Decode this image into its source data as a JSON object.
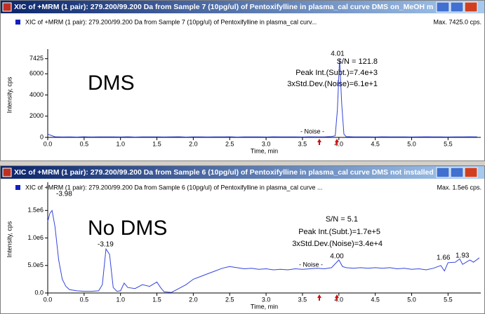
{
  "chart_data": [
    {
      "type": "line",
      "window_title": "XIC of +MRM (1 pair): 279.200/99.200 Da  from Sample 7 (10pg/ul) of Pentoxifylline in plasma_cal curve DMS on_MeOH m...",
      "title": "XIC of +MRM (1 pair): 279.200/99.200 Da  from Sample 7 (10pg/ul) of Pentoxifylline in plasma_cal curv...",
      "max_label": "Max. 7425.0 cps.",
      "xlabel": "Time, min",
      "ylabel": "Intensity, cps",
      "color": "#3344dd",
      "xlim": [
        0,
        5.95
      ],
      "ylim": [
        0,
        8000
      ],
      "xticks": [
        {
          "value": 0,
          "label": "0.0"
        },
        0.5,
        {
          "value": 1,
          "label": "1.0"
        },
        1.5,
        {
          "value": 2,
          "label": "2.0"
        },
        2.5,
        {
          "value": 3,
          "label": "3.0"
        },
        3.5,
        {
          "value": 4,
          "label": "4.0"
        },
        4.5,
        {
          "value": 5,
          "label": "5.0"
        },
        5.5
      ],
      "yticks": [
        0,
        2000,
        4000,
        6000,
        7425
      ],
      "annotations": [
        "DMS",
        "S/N = 121.8",
        "Peak Int.(Subt.)=7.4e+3",
        "3xStd.Dev.(Noise)=6.1e+1",
        "- Noise -",
        "4.01"
      ],
      "x": [
        0,
        0.1,
        0.2,
        0.3,
        0.4,
        0.5,
        0.6,
        0.7,
        0.8,
        0.9,
        1,
        1.1,
        1.2,
        1.3,
        1.4,
        1.5,
        1.6,
        1.7,
        1.8,
        1.9,
        2,
        2.1,
        2.2,
        2.3,
        2.4,
        2.5,
        2.6,
        2.7,
        2.8,
        2.9,
        3,
        3.1,
        3.2,
        3.3,
        3.4,
        3.5,
        3.6,
        3.7,
        3.8,
        3.9,
        3.95,
        3.98,
        4.01,
        4.04,
        4.07,
        4.1,
        4.2,
        4.3,
        4.4,
        4.5,
        4.6,
        4.7,
        4.8,
        4.9,
        5,
        5.1,
        5.2,
        5.3,
        5.4,
        5.5,
        5.6,
        5.7,
        5.8,
        5.9
      ],
      "values": [
        300,
        60,
        40,
        50,
        30,
        60,
        40,
        50,
        45,
        55,
        40,
        60,
        35,
        50,
        45,
        55,
        40,
        50,
        60,
        35,
        45,
        55,
        40,
        50,
        45,
        60,
        35,
        50,
        45,
        55,
        40,
        60,
        50,
        45,
        55,
        40,
        60,
        50,
        45,
        80,
        150,
        2600,
        7425,
        3100,
        300,
        70,
        50,
        45,
        55,
        40,
        60,
        50,
        45,
        55,
        40,
        50,
        60,
        45,
        55,
        40,
        50,
        45,
        60,
        50
      ]
    },
    {
      "type": "line",
      "window_title": "XIC of +MRM (1 pair): 279.200/99.200 Da  from Sample 6 (10pg/ul) of Pentoxifylline in plasma_cal curve DMS not installed...",
      "title": "XIC of +MRM (1 pair): 279.200/99.200 Da  from Sample 6 (10pg/ul) of Pentoxifylline in plasma_cal curve ...",
      "max_label": "Max. 1.5e6 cps.",
      "xlabel": "Time, min",
      "ylabel": "Intensity, cps",
      "color": "#3344dd",
      "xlim": [
        0,
        5.95
      ],
      "ylim": [
        0,
        1950000
      ],
      "xticks": [
        {
          "value": 0,
          "label": "0.0"
        },
        0.5,
        {
          "value": 1,
          "label": "1.0"
        },
        1.5,
        {
          "value": 2,
          "label": "2.0"
        },
        2.5,
        {
          "value": 3,
          "label": "3.0"
        },
        3.5,
        {
          "value": 4,
          "label": "4.0"
        },
        4.5,
        {
          "value": 5,
          "label": "5.0"
        },
        5.5
      ],
      "yticks": [
        {
          "value": 0,
          "label": "0.0"
        },
        {
          "value": 500000,
          "label": "5.0e5"
        },
        {
          "value": 1000000,
          "label": "1.0e6"
        },
        {
          "value": 1500000,
          "label": "1.5e6"
        }
      ],
      "annotations": [
        "No DMS",
        "S/N = 5.1",
        "Peak Int.(Subt.)=1.7e+5",
        "3xStd.Dev.(Noise)=3.4e+4",
        "- Noise -",
        "4.00",
        "-3.98",
        "-3.19",
        "1.66",
        "1.93"
      ],
      "x": [
        0,
        0.03,
        0.06,
        0.1,
        0.15,
        0.2,
        0.25,
        0.3,
        0.4,
        0.5,
        0.6,
        0.7,
        0.75,
        0.8,
        0.85,
        0.9,
        0.95,
        1,
        1.05,
        1.1,
        1.2,
        1.3,
        1.4,
        1.5,
        1.55,
        1.6,
        1.7,
        1.8,
        1.9,
        2,
        2.1,
        2.2,
        2.3,
        2.4,
        2.5,
        2.6,
        2.7,
        2.8,
        2.9,
        3,
        3.1,
        3.2,
        3.3,
        3.4,
        3.5,
        3.6,
        3.7,
        3.8,
        3.9,
        4,
        4.05,
        4.1,
        4.2,
        4.3,
        4.4,
        4.5,
        4.6,
        4.7,
        4.8,
        4.9,
        5,
        5.1,
        5.2,
        5.3,
        5.4,
        5.45,
        5.5,
        5.6,
        5.66,
        5.7,
        5.8,
        5.85,
        5.93
      ],
      "values": [
        1300000,
        1450000,
        1500000,
        1200000,
        600000,
        250000,
        120000,
        60000,
        40000,
        30000,
        30000,
        40000,
        150000,
        800000,
        700000,
        100000,
        30000,
        40000,
        180000,
        100000,
        80000,
        150000,
        120000,
        200000,
        100000,
        20000,
        10000,
        80000,
        150000,
        250000,
        300000,
        350000,
        400000,
        450000,
        480000,
        460000,
        440000,
        450000,
        430000,
        440000,
        420000,
        430000,
        420000,
        440000,
        430000,
        440000,
        450000,
        440000,
        460000,
        600000,
        480000,
        460000,
        450000,
        460000,
        450000,
        460000,
        450000,
        460000,
        440000,
        450000,
        430000,
        440000,
        420000,
        450000,
        500000,
        400000,
        550000,
        560000,
        620000,
        520000,
        600000,
        560000,
        640000
      ]
    }
  ]
}
